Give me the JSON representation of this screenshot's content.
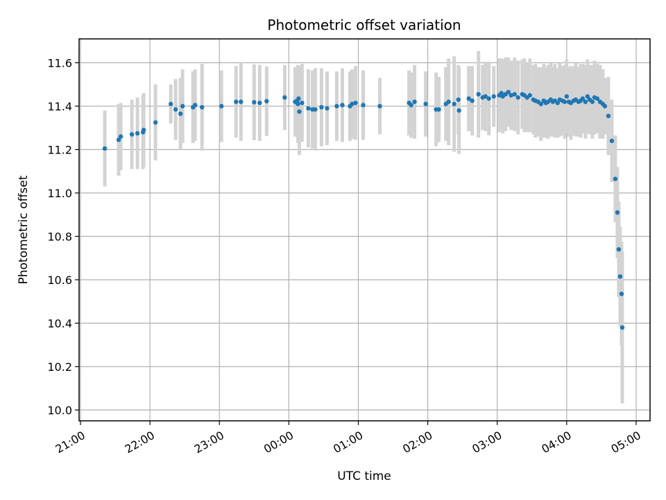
{
  "chart_data": {
    "type": "scatter",
    "title": "Photometric offset variation",
    "xlabel": "UTC time",
    "ylabel": "Photometric offset",
    "x_unit": "hours since 21:00 UTC",
    "xlim": [
      -0.02,
      8.2
    ],
    "ylim": [
      9.95,
      11.71
    ],
    "grid": true,
    "x_ticks": [
      {
        "value": 0,
        "label": "21:00"
      },
      {
        "value": 1,
        "label": "22:00"
      },
      {
        "value": 2,
        "label": "23:00"
      },
      {
        "value": 3,
        "label": "00:00"
      },
      {
        "value": 4,
        "label": "01:00"
      },
      {
        "value": 5,
        "label": "02:00"
      },
      {
        "value": 6,
        "label": "03:00"
      },
      {
        "value": 7,
        "label": "04:00"
      },
      {
        "value": 8,
        "label": "05:00"
      }
    ],
    "y_ticks": [
      {
        "value": 10.0,
        "label": "10.0"
      },
      {
        "value": 10.2,
        "label": "10.2"
      },
      {
        "value": 10.4,
        "label": "10.4"
      },
      {
        "value": 10.6,
        "label": "10.6"
      },
      {
        "value": 10.8,
        "label": "10.8"
      },
      {
        "value": 11.0,
        "label": "11.0"
      },
      {
        "value": 11.2,
        "label": "11.2"
      },
      {
        "value": 11.4,
        "label": "11.4"
      },
      {
        "value": 11.6,
        "label": "11.6"
      }
    ],
    "colors": {
      "point": "#1f77b4",
      "errorbar": "#d3d3d3",
      "grid": "#b0b0b0"
    },
    "series": [
      {
        "points": [
          [
            0.35,
            11.205,
            0.175
          ],
          [
            0.55,
            11.245,
            0.165
          ],
          [
            0.58,
            11.26,
            0.155
          ],
          [
            0.74,
            11.27,
            0.16
          ],
          [
            0.82,
            11.275,
            0.165
          ],
          [
            0.9,
            11.28,
            0.17
          ],
          [
            0.91,
            11.29,
            0.17
          ],
          [
            1.08,
            11.325,
            0.175
          ],
          [
            1.3,
            11.41,
            0.09
          ],
          [
            1.37,
            11.385,
            0.14
          ],
          [
            1.44,
            11.365,
            0.165
          ],
          [
            1.47,
            11.4,
            0.17
          ],
          [
            1.62,
            11.395,
            0.165
          ],
          [
            1.65,
            11.405,
            0.165
          ],
          [
            1.75,
            11.395,
            0.2
          ],
          [
            2.03,
            11.4,
            0.165
          ],
          [
            2.24,
            11.42,
            0.165
          ],
          [
            2.31,
            11.42,
            0.18
          ],
          [
            2.5,
            11.418,
            0.175
          ],
          [
            2.58,
            11.415,
            0.175
          ],
          [
            2.68,
            11.423,
            0.16
          ],
          [
            2.94,
            11.44,
            0.15
          ],
          [
            3.09,
            11.42,
            0.16
          ],
          [
            3.12,
            11.425,
            0.15
          ],
          [
            3.13,
            11.41,
            0.18
          ],
          [
            3.14,
            11.435,
            0.15
          ],
          [
            3.15,
            11.375,
            0.2
          ],
          [
            3.19,
            11.415,
            0.18
          ],
          [
            3.28,
            11.39,
            0.18
          ],
          [
            3.34,
            11.385,
            0.18
          ],
          [
            3.38,
            11.385,
            0.19
          ],
          [
            3.47,
            11.395,
            0.18
          ],
          [
            3.55,
            11.39,
            0.17
          ],
          [
            3.69,
            11.4,
            0.16
          ],
          [
            3.77,
            11.405,
            0.17
          ],
          [
            3.88,
            11.4,
            0.16
          ],
          [
            3.91,
            11.41,
            0.16
          ],
          [
            3.96,
            11.415,
            0.17
          ],
          [
            4.07,
            11.405,
            0.16
          ],
          [
            4.31,
            11.4,
            0.13
          ],
          [
            4.73,
            11.415,
            0.15
          ],
          [
            4.76,
            11.405,
            0.15
          ],
          [
            4.81,
            11.42,
            0.17
          ],
          [
            4.97,
            11.41,
            0.15
          ],
          [
            5.12,
            11.385,
            0.17
          ],
          [
            5.16,
            11.385,
            0.15
          ],
          [
            5.26,
            11.41,
            0.17
          ],
          [
            5.3,
            11.42,
            0.2
          ],
          [
            5.38,
            11.41,
            0.22
          ],
          [
            5.44,
            11.43,
            0.16
          ],
          [
            5.45,
            11.38,
            0.2
          ],
          [
            5.59,
            11.435,
            0.15
          ],
          [
            5.64,
            11.425,
            0.16
          ],
          [
            5.73,
            11.455,
            0.2
          ],
          [
            5.79,
            11.44,
            0.15
          ],
          [
            5.83,
            11.445,
            0.16
          ],
          [
            5.88,
            11.435,
            0.17
          ],
          [
            5.95,
            11.445,
            0.14
          ],
          [
            6.03,
            11.45,
            0.17
          ],
          [
            6.06,
            11.46,
            0.16
          ],
          [
            6.08,
            11.445,
            0.17
          ],
          [
            6.12,
            11.455,
            0.17
          ],
          [
            6.16,
            11.465,
            0.16
          ],
          [
            6.2,
            11.45,
            0.16
          ],
          [
            6.25,
            11.455,
            0.17
          ],
          [
            6.3,
            11.44,
            0.17
          ],
          [
            6.36,
            11.455,
            0.16
          ],
          [
            6.39,
            11.45,
            0.17
          ],
          [
            6.43,
            11.44,
            0.16
          ],
          [
            6.47,
            11.45,
            0.17
          ],
          [
            6.52,
            11.43,
            0.16
          ],
          [
            6.55,
            11.425,
            0.17
          ],
          [
            6.59,
            11.42,
            0.16
          ],
          [
            6.63,
            11.41,
            0.17
          ],
          [
            6.67,
            11.425,
            0.17
          ],
          [
            6.7,
            11.415,
            0.16
          ],
          [
            6.73,
            11.42,
            0.17
          ],
          [
            6.77,
            11.43,
            0.17
          ],
          [
            6.8,
            11.42,
            0.16
          ],
          [
            6.83,
            11.425,
            0.17
          ],
          [
            6.87,
            11.415,
            0.16
          ],
          [
            6.9,
            11.43,
            0.17
          ],
          [
            6.94,
            11.425,
            0.16
          ],
          [
            6.97,
            11.42,
            0.17
          ],
          [
            7.0,
            11.445,
            0.17
          ],
          [
            7.03,
            11.42,
            0.16
          ],
          [
            7.06,
            11.415,
            0.17
          ],
          [
            7.1,
            11.425,
            0.16
          ],
          [
            7.13,
            11.43,
            0.17
          ],
          [
            7.17,
            11.42,
            0.16
          ],
          [
            7.2,
            11.425,
            0.17
          ],
          [
            7.23,
            11.435,
            0.16
          ],
          [
            7.27,
            11.42,
            0.17
          ],
          [
            7.3,
            11.445,
            0.17
          ],
          [
            7.33,
            11.43,
            0.16
          ],
          [
            7.37,
            11.42,
            0.17
          ],
          [
            7.4,
            11.44,
            0.17
          ],
          [
            7.44,
            11.435,
            0.16
          ],
          [
            7.48,
            11.42,
            0.17
          ],
          [
            7.52,
            11.41,
            0.16
          ],
          [
            7.55,
            11.4,
            0.13
          ],
          [
            7.6,
            11.355,
            0.18
          ],
          [
            7.65,
            11.24,
            0.19
          ],
          [
            7.7,
            11.065,
            0.2
          ],
          [
            7.73,
            10.91,
            0.21
          ],
          [
            7.75,
            10.74,
            0.22
          ],
          [
            7.77,
            10.615,
            0.23
          ],
          [
            7.79,
            10.535,
            0.24
          ],
          [
            7.8,
            10.38,
            0.35
          ]
        ]
      }
    ]
  }
}
